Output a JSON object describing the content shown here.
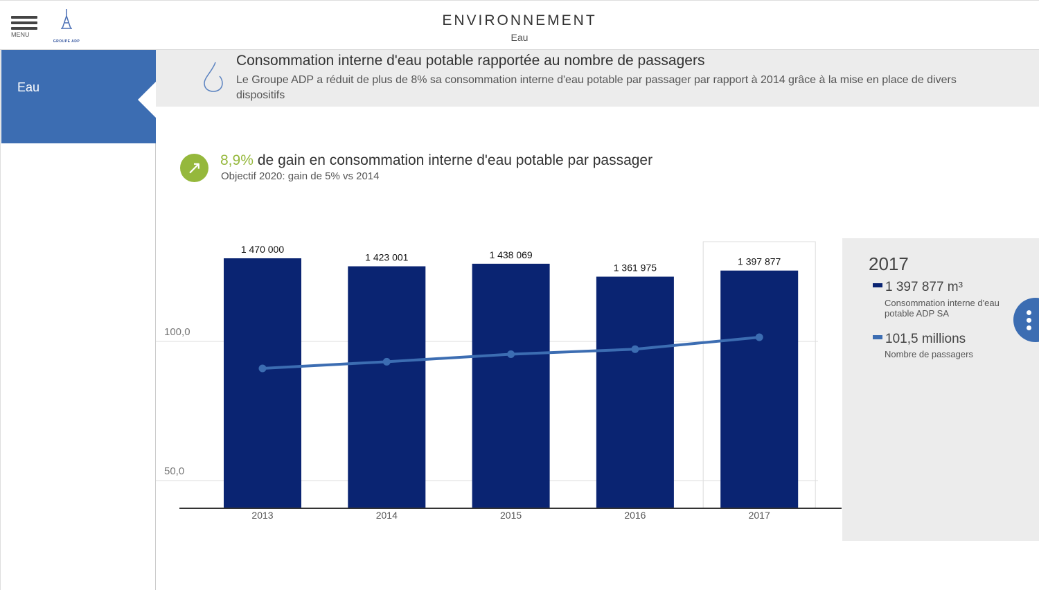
{
  "header": {
    "menu_label": "MENU",
    "logo_text": "GROUPE ADP",
    "title": "ENVIRONNEMENT",
    "subtitle": "Eau"
  },
  "sidebar": {
    "items": [
      {
        "label": "Eau",
        "active": true
      }
    ]
  },
  "banner": {
    "title": "Consommation interne d'eau potable rapportée au nombre de passagers",
    "text": "Le Groupe ADP a réduit de plus de 8% sa consommation interne d'eau potable par passager par rapport à 2014 grâce à la mise en place de divers dispositifs"
  },
  "kpi": {
    "value": "8,9%",
    "label": "de gain en consommation interne d'eau potable par passager",
    "objective": "Objectif 2020: gain de 5% vs 2014"
  },
  "chart_data": {
    "type": "bar",
    "categories": [
      "2013",
      "2014",
      "2015",
      "2016",
      "2017"
    ],
    "series": [
      {
        "name": "Consommation interne d'eau potable ADP SA (m³)",
        "type": "bar",
        "values": [
          1470000,
          1423001,
          1438069,
          1361975,
          1397877
        ],
        "labels": [
          "1 470 000",
          "1 423 001",
          "1 438 069",
          "1 361 975",
          "1 397 877"
        ],
        "color": "#0a2472"
      },
      {
        "name": "Nombre de passagers (millions)",
        "type": "line",
        "values": [
          90.3,
          92.7,
          95.4,
          97.2,
          101.5
        ],
        "color": "#3c6db2"
      }
    ],
    "y_ticks": [
      "100,0",
      "50,0"
    ],
    "y_tick_values": [
      100,
      50
    ],
    "highlight": "2017"
  },
  "panel": {
    "year": "2017",
    "items": [
      {
        "value": "1 397 877 m³",
        "label": "Consommation interne d'eau potable ADP SA",
        "color": "#0a2472"
      },
      {
        "value": "101,5 millions",
        "label": "Nombre de passagers",
        "color": "#3c6db2"
      }
    ]
  }
}
